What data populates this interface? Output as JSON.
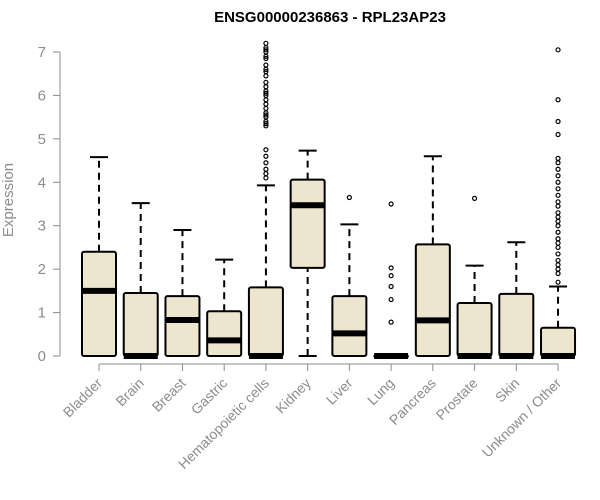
{
  "chart_data": {
    "type": "boxplot",
    "title": "ENSG00000236863 - RPL23AP23",
    "xlabel": "",
    "ylabel": "Expression",
    "ylim": [
      0,
      7
    ],
    "yticks": [
      0,
      1,
      2,
      3,
      4,
      5,
      6,
      7
    ],
    "box_fill": "#ede5cd",
    "box_stroke": "#000000",
    "axis_color": "#8c8c8c",
    "categories": [
      "Bladder",
      "Brain",
      "Breast",
      "Gastric",
      "Hematopoietic cells",
      "Kidney",
      "Liver",
      "Lung",
      "Pancreas",
      "Prostate",
      "Skin",
      "Unknown / Other"
    ],
    "boxes": [
      {
        "name": "Bladder",
        "whisker_low": 0,
        "q1": 0,
        "median": 1.5,
        "q3": 2.4,
        "whisker_high": 4.58,
        "outliers": []
      },
      {
        "name": "Brain",
        "whisker_low": 0,
        "q1": 0,
        "median": 0,
        "q3": 1.45,
        "whisker_high": 3.52,
        "outliers": []
      },
      {
        "name": "Breast",
        "whisker_low": 0,
        "q1": 0,
        "median": 0.83,
        "q3": 1.38,
        "whisker_high": 2.9,
        "outliers": []
      },
      {
        "name": "Gastric",
        "whisker_low": 0,
        "q1": 0,
        "median": 0.36,
        "q3": 1.03,
        "whisker_high": 2.22,
        "outliers": []
      },
      {
        "name": "Hematopoietic cells",
        "whisker_low": 0,
        "q1": 0,
        "median": 0,
        "q3": 1.58,
        "whisker_high": 3.93,
        "outliers": [
          4.1,
          4.2,
          4.3,
          4.45,
          4.6,
          4.75,
          5.3,
          5.35,
          5.4,
          5.5,
          5.55,
          5.6,
          5.7,
          5.8,
          5.9,
          6.0,
          6.05,
          6.1,
          6.2,
          6.3,
          6.45,
          6.55,
          6.6,
          6.7,
          6.85,
          6.9,
          7.0,
          7.05,
          7.1,
          7.2
        ]
      },
      {
        "name": "Kidney",
        "whisker_low": 0,
        "q1": 2.03,
        "median": 3.47,
        "q3": 4.06,
        "whisker_high": 4.73,
        "outliers": []
      },
      {
        "name": "Liver",
        "whisker_low": 0,
        "q1": 0,
        "median": 0.52,
        "q3": 1.38,
        "whisker_high": 3.03,
        "outliers": [
          3.65
        ]
      },
      {
        "name": "Lung",
        "whisker_low": 0,
        "q1": 0,
        "median": 0,
        "q3": 0,
        "whisker_high": 0,
        "outliers": [
          0.78,
          1.3,
          1.6,
          1.85,
          2.03,
          3.5
        ]
      },
      {
        "name": "Pancreas",
        "whisker_low": 0,
        "q1": 0,
        "median": 0.82,
        "q3": 2.57,
        "whisker_high": 4.6,
        "outliers": []
      },
      {
        "name": "Prostate",
        "whisker_low": 0,
        "q1": 0,
        "median": 0,
        "q3": 1.22,
        "whisker_high": 2.08,
        "outliers": [
          3.63
        ]
      },
      {
        "name": "Skin",
        "whisker_low": 0,
        "q1": 0,
        "median": 0,
        "q3": 1.43,
        "whisker_high": 2.62,
        "outliers": []
      },
      {
        "name": "Unknown / Other",
        "whisker_low": 0,
        "q1": 0,
        "median": 0,
        "q3": 0.65,
        "whisker_high": 1.6,
        "outliers": [
          1.7,
          1.9,
          2.0,
          2.1,
          2.2,
          2.35,
          2.5,
          2.6,
          2.7,
          2.85,
          3.0,
          3.1,
          3.2,
          3.3,
          3.45,
          3.55,
          3.7,
          3.85,
          4.0,
          4.15,
          4.3,
          4.45,
          4.55,
          5.1,
          5.4,
          5.9,
          7.05
        ]
      }
    ]
  }
}
